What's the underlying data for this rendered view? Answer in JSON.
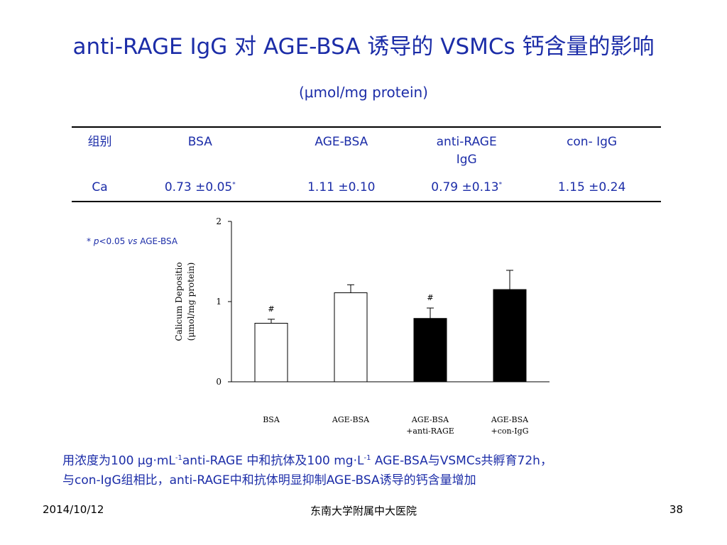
{
  "slide": {
    "title": "anti-RAGE IgG 对 AGE-BSA 诱导的 VSMCs 钙含量的影响",
    "unit": "(μmol/mg protein)",
    "significance_note": {
      "star": "* ",
      "p": "p",
      "rest": "<0.05 ",
      "vs": "vs",
      "ref": " AGE-BSA"
    },
    "caption": {
      "line1_a": "用浓度为100 μg·mL",
      "line1_sup1": "-1",
      "line1_b": "anti-RAGE 中和抗体及100 mg·L",
      "line1_sup2": "-1",
      "line1_c": " AGE-BSA与VSMCs共孵育72h，",
      "line2": "与con-IgG组相比，anti-RAGE中和抗体明显抑制AGE-BSA诱导的钙含量增加"
    },
    "footer": {
      "date": "2014/10/12",
      "org": "东南大学附属中大医院",
      "page": "38"
    }
  },
  "table": {
    "headers": [
      "组别",
      "BSA",
      "AGE-BSA",
      "anti-RAGE IgG",
      "con- IgG"
    ],
    "row_label": "Ca",
    "cells": [
      {
        "text": "0.73 ±0.05",
        "mark": "*"
      },
      {
        "text": "1.11 ±0.10",
        "mark": ""
      },
      {
        "text": "0.79 ±0.13",
        "mark": "*"
      },
      {
        "text": "1.15 ±0.24",
        "mark": ""
      }
    ]
  },
  "chart_data": {
    "type": "bar",
    "categories": [
      "BSA",
      "AGE-BSA",
      "AGE-BSA\n+anti-RAGE",
      "AGE-BSA\n+con-IgG"
    ],
    "series": [
      {
        "values": [
          0.73,
          1.11,
          0.79,
          1.15
        ],
        "errors": [
          0.05,
          0.1,
          0.13,
          0.24
        ]
      }
    ],
    "bar_fills": [
      "#ffffff",
      "#ffffff",
      "#000000",
      "#000000"
    ],
    "annotations": [
      "#",
      "",
      "#",
      ""
    ],
    "ylabel_lines": [
      "Calicum Depositio",
      "(μmol/mg protein)"
    ],
    "yticks": [
      0,
      1,
      2
    ],
    "ylim": [
      0,
      2
    ],
    "grid": false
  }
}
